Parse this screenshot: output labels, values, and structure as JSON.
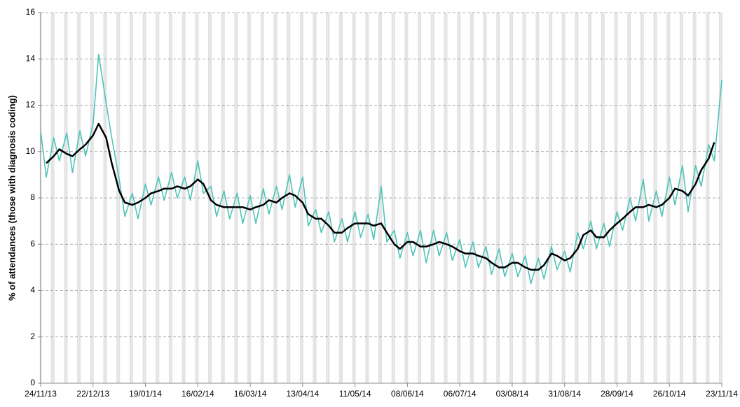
{
  "chart_data": {
    "type": "line",
    "ylabel": "% of attendances (those with diagnosis coding)",
    "x": [
      "24/11/13",
      "27/11/13",
      "01/12/13",
      "04/12/13",
      "08/12/13",
      "11/12/13",
      "15/12/13",
      "18/12/13",
      "22/12/13",
      "25/12/13",
      "29/12/13",
      "01/01/14",
      "05/01/14",
      "08/01/14",
      "12/01/14",
      "15/01/14",
      "19/01/14",
      "22/01/14",
      "26/01/14",
      "29/01/14",
      "02/02/14",
      "05/02/14",
      "09/02/14",
      "12/02/14",
      "16/02/14",
      "19/02/14",
      "23/02/14",
      "26/02/14",
      "02/03/14",
      "05/03/14",
      "09/03/14",
      "12/03/14",
      "16/03/14",
      "19/03/14",
      "23/03/14",
      "26/03/14",
      "30/03/14",
      "02/04/14",
      "06/04/14",
      "09/04/14",
      "13/04/14",
      "16/04/14",
      "20/04/14",
      "23/04/14",
      "27/04/14",
      "30/04/14",
      "04/05/14",
      "07/05/14",
      "11/05/14",
      "14/05/14",
      "18/05/14",
      "21/05/14",
      "25/05/14",
      "28/05/14",
      "01/06/14",
      "04/06/14",
      "08/06/14",
      "11/06/14",
      "15/06/14",
      "18/06/14",
      "22/06/14",
      "25/06/14",
      "29/06/14",
      "02/07/14",
      "06/07/14",
      "09/07/14",
      "13/07/14",
      "16/07/14",
      "20/07/14",
      "23/07/14",
      "27/07/14",
      "30/07/14",
      "03/08/14",
      "06/08/14",
      "10/08/14",
      "13/08/14",
      "17/08/14",
      "20/08/14",
      "24/08/14",
      "27/08/14",
      "31/08/14",
      "03/09/14",
      "07/09/14",
      "10/09/14",
      "14/09/14",
      "17/09/14",
      "21/09/14",
      "24/09/14",
      "28/09/14",
      "01/10/14",
      "05/10/14",
      "08/10/14",
      "12/10/14",
      "15/10/14",
      "19/10/14",
      "22/10/14",
      "26/10/14",
      "29/10/14",
      "02/11/14",
      "05/11/14",
      "09/11/14",
      "12/11/14",
      "16/11/14",
      "19/11/14",
      "23/11/14"
    ],
    "series": [
      {
        "color": "#4fc4b8",
        "values": [
          10.9,
          8.9,
          10.6,
          9.6,
          10.8,
          9.1,
          10.9,
          9.8,
          11.2,
          14.2,
          12.1,
          10.6,
          8.8,
          7.2,
          8.2,
          7.1,
          8.6,
          7.7,
          8.9,
          7.9,
          9.1,
          8.0,
          8.9,
          7.9,
          9.6,
          8.2,
          8.5,
          7.2,
          8.3,
          7.1,
          8.2,
          6.9,
          8.1,
          6.9,
          8.4,
          7.3,
          8.5,
          7.5,
          9.0,
          7.6,
          8.9,
          6.8,
          7.5,
          6.5,
          7.4,
          6.1,
          7.1,
          6.1,
          7.4,
          6.3,
          7.3,
          6.2,
          8.5,
          6.1,
          6.6,
          5.4,
          6.5,
          5.5,
          6.6,
          5.2,
          6.6,
          5.5,
          6.5,
          5.3,
          6.2,
          5.0,
          6.1,
          5.0,
          5.9,
          4.7,
          5.8,
          4.6,
          5.6,
          4.6,
          5.5,
          4.3,
          5.4,
          4.5,
          5.9,
          4.9,
          5.7,
          4.8,
          6.5,
          5.8,
          7.0,
          5.8,
          6.9,
          5.9,
          7.4,
          6.6,
          8.0,
          7.0,
          8.8,
          7.0,
          8.3,
          7.2,
          8.9,
          7.7,
          9.4,
          7.4,
          9.4,
          8.5,
          10.3,
          9.6,
          13.1
        ]
      },
      {
        "color": "#000000",
        "values": [
          null,
          9.5,
          9.8,
          10.1,
          9.9,
          9.8,
          10.1,
          10.3,
          10.7,
          11.2,
          10.6,
          9.5,
          8.3,
          7.8,
          7.7,
          7.8,
          8.0,
          8.2,
          8.3,
          8.4,
          8.4,
          8.5,
          8.4,
          8.5,
          8.8,
          8.6,
          7.9,
          7.7,
          7.6,
          7.6,
          7.6,
          7.6,
          7.5,
          7.6,
          7.7,
          7.9,
          7.8,
          8.0,
          8.2,
          8.1,
          7.8,
          7.3,
          7.1,
          7.1,
          6.8,
          6.5,
          6.5,
          6.7,
          6.9,
          6.9,
          6.9,
          6.8,
          6.9,
          6.5,
          6.0,
          5.8,
          6.1,
          6.1,
          5.9,
          5.9,
          6.0,
          6.1,
          6.0,
          5.9,
          5.7,
          5.6,
          5.6,
          5.5,
          5.4,
          5.2,
          5.0,
          5.0,
          5.2,
          5.2,
          5.0,
          4.9,
          4.9,
          5.1,
          5.6,
          5.5,
          5.3,
          5.4,
          5.8,
          6.4,
          6.6,
          6.3,
          6.3,
          6.6,
          6.9,
          7.1,
          7.4,
          7.6,
          7.6,
          7.7,
          7.6,
          7.7,
          8.0,
          8.4,
          8.3,
          8.1,
          8.6,
          9.2,
          9.7,
          10.4,
          null
        ]
      }
    ],
    "xlim": [
      "24/11/13",
      "23/11/14"
    ],
    "xticks": [
      "24/11/13",
      "22/12/13",
      "19/01/14",
      "16/02/14",
      "16/03/14",
      "13/04/14",
      "11/05/14",
      "08/06/14",
      "06/07/14",
      "03/08/14",
      "31/08/14",
      "28/09/14",
      "26/10/14",
      "23/11/14"
    ],
    "ylim": [
      0,
      16
    ],
    "yticks": [
      0,
      2,
      4,
      6,
      8,
      10,
      12,
      14,
      16
    ],
    "grid": true
  }
}
